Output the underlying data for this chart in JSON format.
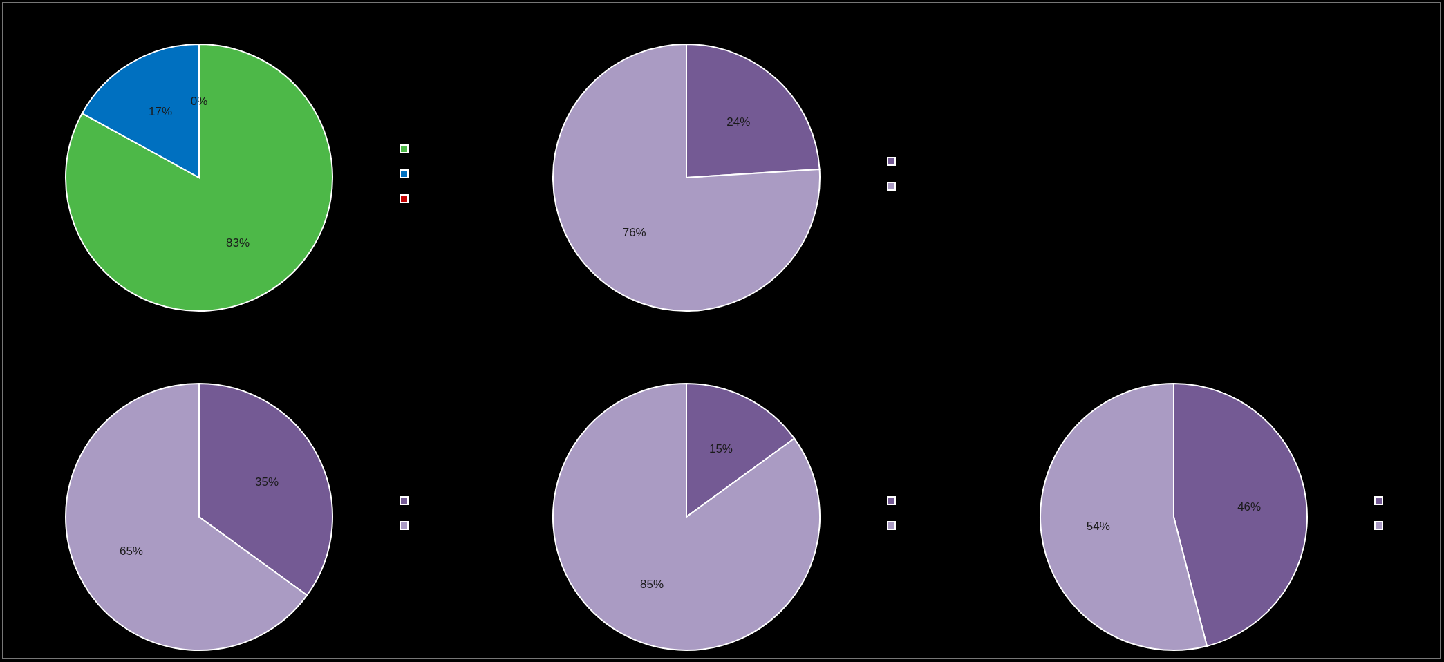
{
  "chart_data": [
    {
      "type": "pie",
      "categories": [
        null,
        null,
        null
      ],
      "values": [
        83,
        17,
        0
      ],
      "colors": [
        "#4db848",
        "#0070c0",
        "#c00000"
      ],
      "value_labels": [
        "83%",
        "17%",
        "0%"
      ]
    },
    {
      "type": "pie",
      "categories": [
        null,
        null
      ],
      "values": [
        24,
        76
      ],
      "colors": [
        "#745a94",
        "#aa9bc3"
      ],
      "value_labels": [
        "24%",
        "76%"
      ]
    },
    {
      "type": "pie",
      "categories": [
        null,
        null
      ],
      "values": [
        35,
        65
      ],
      "colors": [
        "#745a94",
        "#aa9bc3"
      ],
      "value_labels": [
        "35%",
        "65%"
      ]
    },
    {
      "type": "pie",
      "categories": [
        null,
        null
      ],
      "values": [
        15,
        85
      ],
      "colors": [
        "#745a94",
        "#aa9bc3"
      ],
      "value_labels": [
        "15%",
        "85%"
      ]
    },
    {
      "type": "pie",
      "categories": [
        null,
        null
      ],
      "values": [
        46,
        54
      ],
      "colors": [
        "#745a94",
        "#aa9bc3"
      ],
      "value_labels": [
        "46%",
        "54%"
      ]
    }
  ]
}
